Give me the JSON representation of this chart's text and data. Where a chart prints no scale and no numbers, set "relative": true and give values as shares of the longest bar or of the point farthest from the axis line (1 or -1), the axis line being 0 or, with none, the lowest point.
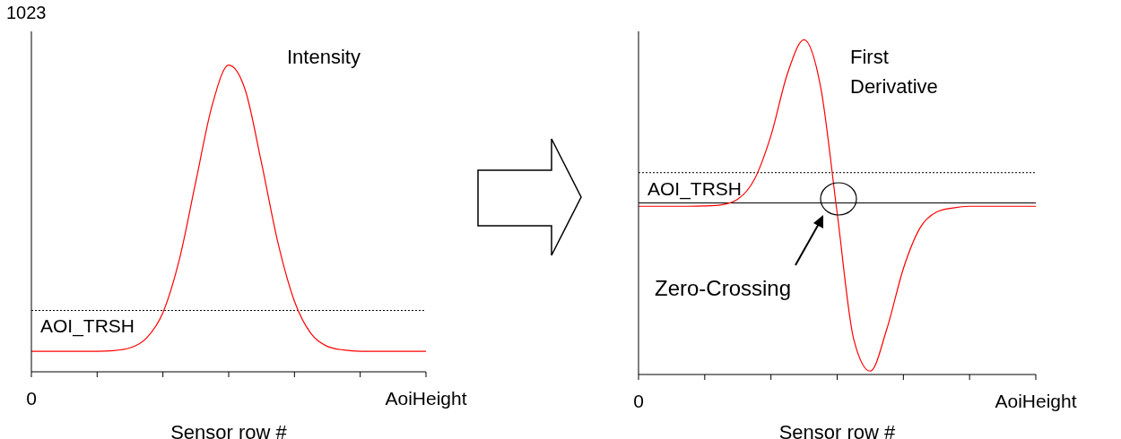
{
  "chart_data": [
    {
      "type": "line",
      "title": "Intensity",
      "xlabel": "Sensor row #",
      "relative": true,
      "marker": "none",
      "categories": [
        "0",
        null,
        null,
        null,
        null,
        null,
        null,
        null,
        null,
        null,
        null,
        null,
        null,
        null,
        null,
        null,
        null,
        null,
        null,
        null,
        null,
        null,
        null,
        null,
        "AoiHeight"
      ],
      "series": [
        {
          "color": "#ff0000",
          "values": [
            0.067,
            0.067,
            0.067,
            0.067,
            0.067,
            0.069,
            0.078,
            0.11,
            0.193,
            0.366,
            0.62,
            0.87,
            1,
            0.92,
            0.68,
            0.42,
            0.23,
            0.125,
            0.083,
            0.071,
            0.067,
            0.067,
            0.067,
            0.067,
            0.067
          ]
        }
      ],
      "ref_lines": [
        {
          "axis": "y",
          "value": 0.2,
          "label": "AOI_TRSH",
          "color": "#000000",
          "line_style": "dotted"
        }
      ],
      "annotations": [
        "1023"
      ]
    },
    {
      "type": "line",
      "title": "First Derivative",
      "xlabel": "Sensor row #",
      "relative": true,
      "marker": "none",
      "categories": [
        "0",
        null,
        null,
        null,
        null,
        null,
        null,
        null,
        null,
        null,
        null,
        null,
        null,
        null,
        null,
        null,
        null,
        null,
        null,
        null,
        null,
        null,
        null,
        null,
        "AoiHeight"
      ],
      "series": [
        {
          "color": "#ff0000",
          "values": [
            -0.02,
            -0.02,
            -0.02,
            -0.02,
            -0.018,
            -0.011,
            0.023,
            0.14,
            0.4,
            0.77,
            0.97,
            0.69,
            -0.06,
            -0.81,
            -1,
            -0.75,
            -0.39,
            -0.15,
            -0.055,
            -0.03,
            -0.02,
            -0.02,
            -0.02,
            -0.02,
            -0.02
          ]
        }
      ],
      "ref_lines": [
        {
          "axis": "y",
          "value": 0.18,
          "label": "AOI_TRSH",
          "color": "#000000",
          "line_style": "dotted"
        },
        {
          "axis": "y",
          "value": 0,
          "color": "#000000",
          "line_style": "solid"
        }
      ],
      "annotations": [
        "Zero-Crossing"
      ]
    }
  ]
}
